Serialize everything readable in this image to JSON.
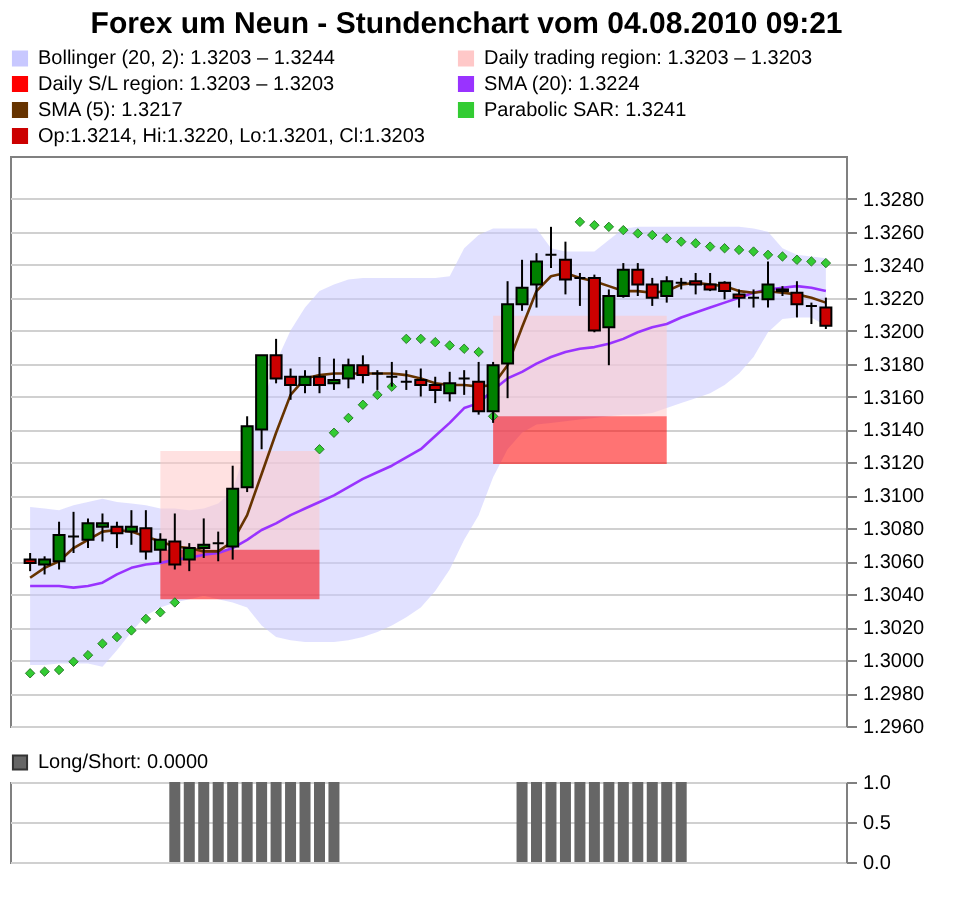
{
  "chart_data": [
    {
      "type": "candlestick",
      "title": "Forex um Neun - Stundenchart vom 04.08.2010 09:21",
      "categories": [
        null,
        null,
        null,
        null,
        null,
        null,
        null,
        null,
        null,
        null,
        null,
        null,
        null,
        null,
        null,
        null,
        null,
        null,
        null,
        null,
        null,
        null,
        null,
        null,
        null,
        null,
        null,
        null,
        null,
        null,
        null,
        null,
        null,
        null,
        null,
        null,
        null,
        null,
        null,
        null,
        null,
        null,
        null,
        null,
        null,
        null,
        null,
        null,
        null,
        null,
        null,
        null,
        null,
        null,
        null,
        null
      ],
      "ylim": [
        1.296,
        1.3306
      ],
      "yticks": [
        {
          "value": 1.296,
          "label": "1.2960"
        },
        {
          "value": 1.298,
          "label": "1.2980"
        },
        {
          "value": 1.3,
          "label": "1.3000"
        },
        {
          "value": 1.302,
          "label": "1.3020"
        },
        {
          "value": 1.304,
          "label": "1.3040"
        },
        {
          "value": 1.306,
          "label": "1.3060"
        },
        {
          "value": 1.308,
          "label": "1.3080"
        },
        {
          "value": 1.31,
          "label": "1.3100"
        },
        {
          "value": 1.312,
          "label": "1.3120"
        },
        {
          "value": 1.314,
          "label": "1.3140"
        },
        {
          "value": 1.316,
          "label": "1.3160"
        },
        {
          "value": 1.318,
          "label": "1.3180"
        },
        {
          "value": 1.32,
          "label": "1.3200"
        },
        {
          "value": 1.322,
          "label": "1.3220"
        },
        {
          "value": 1.324,
          "label": "1.3240"
        },
        {
          "value": 1.326,
          "label": "1.3260"
        },
        {
          "value": 1.328,
          "label": "1.3280"
        }
      ],
      "grid": "y",
      "legend": "top",
      "tick_labels": "y",
      "series": [
        {
          "type": "area",
          "name": "Bollinger (20, 2): 1.3203 – 1.3244",
          "color": "#c8c8ff",
          "values": [
            null,
            null,
            null,
            null,
            null,
            null,
            null,
            null,
            null,
            null,
            null,
            null,
            null,
            null,
            null,
            null,
            null,
            null,
            null,
            null,
            null,
            null,
            null,
            null,
            null,
            null,
            null,
            null,
            null,
            null,
            null,
            null,
            null,
            null,
            null,
            null,
            null,
            null,
            null,
            null,
            null,
            null,
            null,
            null,
            null,
            null,
            null,
            null,
            null,
            null,
            null,
            null,
            null,
            null,
            null,
            null
          ],
          "upper": [
            1.3093,
            1.3092,
            1.3091,
            1.3094,
            1.3096,
            1.3098,
            1.3096,
            1.3095,
            1.3094,
            1.3092,
            1.3092,
            1.3091,
            1.3092,
            1.3095,
            1.3103,
            1.3131,
            1.3154,
            1.3181,
            1.32,
            1.3214,
            1.3224,
            1.3228,
            1.3231,
            1.3232,
            1.3232,
            1.3232,
            1.3232,
            1.3232,
            1.3232,
            1.3233,
            1.325,
            1.3258,
            1.3262,
            1.3262,
            1.3262,
            1.3262,
            1.325,
            1.3248,
            1.3248,
            1.3248,
            1.3255,
            1.3262,
            1.3263,
            1.3263,
            1.3263,
            1.3263,
            1.3263,
            1.3263,
            1.3263,
            1.3263,
            1.3262,
            1.326,
            1.325,
            1.3246,
            1.3245,
            1.3244
          ],
          "lower": [
            1.2997,
            1.2997,
            1.2998,
            1.2998,
            1.2998,
            1.2996,
            1.3006,
            1.3017,
            1.3027,
            1.3032,
            1.3035,
            1.3037,
            1.3039,
            1.3037,
            1.3035,
            1.3032,
            1.3021,
            1.3014,
            1.3012,
            1.3011,
            1.3011,
            1.3011,
            1.3012,
            1.3014,
            1.3017,
            1.3021,
            1.3026,
            1.3032,
            1.3042,
            1.3055,
            1.3073,
            1.3088,
            1.3111,
            1.3128,
            1.3138,
            1.3143,
            1.3144,
            1.3145,
            1.3146,
            1.3147,
            1.3148,
            1.3149,
            1.3149,
            1.315,
            1.3153,
            1.3156,
            1.3159,
            1.3162,
            1.3167,
            1.3174,
            1.3184,
            1.3199,
            1.3207,
            1.3208,
            1.3208,
            1.3203
          ]
        },
        {
          "type": "area",
          "name": "Daily trading region: 1.3203 – 1.3203",
          "color": "#ffc8c8",
          "values": [
            null,
            null,
            null,
            null,
            null,
            null,
            null,
            null,
            null,
            null,
            null,
            null,
            null,
            null,
            null,
            null,
            null,
            null,
            null,
            null,
            null,
            null,
            null,
            null,
            null,
            null,
            null,
            null,
            null,
            null,
            null,
            null,
            null,
            null,
            null,
            null,
            null,
            null,
            null,
            null,
            null,
            null,
            null,
            null,
            null,
            null,
            null,
            null,
            null,
            null,
            null,
            null,
            null,
            null,
            null,
            null
          ],
          "upper": [
            null,
            null,
            null,
            null,
            null,
            null,
            null,
            null,
            null,
            1.3127,
            1.3127,
            1.3127,
            1.3127,
            1.3127,
            1.3127,
            1.3127,
            1.3127,
            1.3127,
            1.3127,
            1.3127,
            1.3127,
            null,
            null,
            null,
            null,
            null,
            null,
            null,
            null,
            null,
            null,
            null,
            1.3209,
            1.3209,
            1.3209,
            1.3209,
            1.3209,
            1.3209,
            1.3209,
            1.3209,
            1.3209,
            1.3209,
            1.3209,
            1.3209,
            1.3209,
            null,
            null,
            null,
            null,
            null,
            null,
            null,
            null,
            null,
            null,
            null
          ],
          "lower": [
            null,
            null,
            null,
            null,
            null,
            null,
            null,
            null,
            null,
            1.3067,
            1.3067,
            1.3067,
            1.3067,
            1.3067,
            1.3067,
            1.3067,
            1.3067,
            1.3067,
            1.3067,
            1.3067,
            1.3067,
            null,
            null,
            null,
            null,
            null,
            null,
            null,
            null,
            null,
            null,
            null,
            1.3148,
            1.3148,
            1.3148,
            1.3148,
            1.3148,
            1.3148,
            1.3148,
            1.3148,
            1.3148,
            1.3148,
            1.3148,
            1.3148,
            1.3148,
            null,
            null,
            null,
            null,
            null,
            null,
            null,
            null,
            null,
            null,
            null
          ]
        },
        {
          "type": "area",
          "name": "Daily S/L region: 1.3203 – 1.3203",
          "color": "#ff0000",
          "values": [
            null,
            null,
            null,
            null,
            null,
            null,
            null,
            null,
            null,
            null,
            null,
            null,
            null,
            null,
            null,
            null,
            null,
            null,
            null,
            null,
            null,
            null,
            null,
            null,
            null,
            null,
            null,
            null,
            null,
            null,
            null,
            null,
            null,
            null,
            null,
            null,
            null,
            null,
            null,
            null,
            null,
            null,
            null,
            null,
            null,
            null,
            null,
            null,
            null,
            null,
            null,
            null,
            null,
            null,
            null,
            null
          ],
          "upper": [
            null,
            null,
            null,
            null,
            null,
            null,
            null,
            null,
            null,
            1.3067,
            1.3067,
            1.3067,
            1.3067,
            1.3067,
            1.3067,
            1.3067,
            1.3067,
            1.3067,
            1.3067,
            1.3067,
            1.3067,
            null,
            null,
            null,
            null,
            null,
            null,
            null,
            null,
            null,
            null,
            null,
            1.3148,
            1.3148,
            1.3148,
            1.3148,
            1.3148,
            1.3148,
            1.3148,
            1.3148,
            1.3148,
            1.3148,
            1.3148,
            1.3148,
            1.3148,
            null,
            null,
            null,
            null,
            null,
            null,
            null,
            null,
            null,
            null,
            null
          ],
          "lower": [
            null,
            null,
            null,
            null,
            null,
            null,
            null,
            null,
            null,
            1.3037,
            1.3037,
            1.3037,
            1.3037,
            1.3037,
            1.3037,
            1.3037,
            1.3037,
            1.3037,
            1.3037,
            1.3037,
            1.3037,
            null,
            null,
            null,
            null,
            null,
            null,
            null,
            null,
            null,
            null,
            null,
            1.3119,
            1.3119,
            1.3119,
            1.3119,
            1.3119,
            1.3119,
            1.3119,
            1.3119,
            1.3119,
            1.3119,
            1.3119,
            1.3119,
            1.3119,
            null,
            null,
            null,
            null,
            null,
            null,
            null,
            null,
            null,
            null,
            null
          ]
        },
        {
          "type": "line",
          "name": "SMA (20): 1.3224",
          "color": "#9933ff",
          "values": [
            1.3045,
            1.3045,
            1.3045,
            1.3044,
            1.3045,
            1.3047,
            1.3052,
            1.3056,
            1.3058,
            1.3059,
            1.3061,
            1.3062,
            1.3064,
            1.3065,
            1.3068,
            1.3073,
            1.3079,
            1.3083,
            1.3088,
            1.3092,
            1.3096,
            1.31,
            1.3105,
            1.311,
            1.3114,
            1.3118,
            1.3123,
            1.3128,
            1.3136,
            1.3144,
            1.3153,
            1.3156,
            1.3164,
            1.3171,
            1.3175,
            1.318,
            1.3184,
            1.3187,
            1.3189,
            1.319,
            1.3192,
            1.3195,
            1.3199,
            1.3202,
            1.3204,
            1.3208,
            1.3211,
            1.3214,
            1.3217,
            1.322,
            1.3223,
            1.3225,
            1.3226,
            1.3227,
            1.3226,
            1.3224
          ]
        },
        {
          "type": "line",
          "name": "SMA (5): 1.3217",
          "color": "#663300",
          "values": [
            1.305,
            1.3056,
            1.306,
            1.3068,
            1.3073,
            1.3078,
            1.3079,
            1.3078,
            1.3075,
            1.3072,
            1.3069,
            1.3068,
            1.3066,
            1.3066,
            1.3072,
            1.3088,
            1.3113,
            1.3138,
            1.3161,
            1.3171,
            1.3173,
            1.3174,
            1.3174,
            1.3174,
            1.3174,
            1.3174,
            1.3173,
            1.3171,
            1.3168,
            1.3167,
            1.3167,
            1.3166,
            1.3167,
            1.3179,
            1.3202,
            1.3224,
            1.3233,
            1.3235,
            1.3232,
            1.323,
            1.3227,
            1.3224,
            1.3224,
            1.3223,
            1.3224,
            1.3228,
            1.3229,
            1.3228,
            1.3227,
            1.3224,
            1.3223,
            1.3224,
            1.3223,
            1.3222,
            1.322,
            1.3217
          ]
        },
        {
          "type": "scatter",
          "name": "Parabolic SAR: 1.3241",
          "color": "#33cc33",
          "marker": "diamond",
          "values": [
            1.2992,
            1.2993,
            1.2994,
            1.2999,
            1.3003,
            1.301,
            1.3014,
            1.3018,
            1.3025,
            1.3029,
            1.3035,
            null,
            null,
            null,
            null,
            null,
            null,
            null,
            null,
            null,
            1.3128,
            1.3138,
            1.3147,
            1.3155,
            1.3161,
            1.3166,
            1.3195,
            1.3195,
            1.3193,
            1.3191,
            1.3189,
            1.3187,
            1.3148,
            null,
            null,
            null,
            null,
            null,
            1.3266,
            1.3264,
            1.3263,
            1.3261,
            1.3259,
            1.3258,
            1.3256,
            1.3254,
            1.3253,
            1.3251,
            1.325,
            1.3249,
            1.3248,
            1.3246,
            1.3245,
            1.3243,
            1.3242,
            1.3241
          ]
        },
        {
          "name": "Op:1.3214, Hi:1.3220, Lo:1.3201, Cl:1.3203",
          "color": "#cc0000",
          "ohlc": [
            [
              1.3061,
              1.3065,
              1.3054,
              1.3059
            ],
            [
              1.3058,
              1.3063,
              1.3052,
              1.3061
            ],
            [
              1.306,
              1.3084,
              1.3055,
              1.3076
            ],
            [
              1.3075,
              1.309,
              1.3065,
              1.3075
            ],
            [
              1.3073,
              1.3086,
              1.3068,
              1.3083
            ],
            [
              1.3081,
              1.3089,
              1.3072,
              1.3083
            ],
            [
              1.3081,
              1.3084,
              1.3068,
              1.3077
            ],
            [
              1.3078,
              1.3091,
              1.307,
              1.3081
            ],
            [
              1.308,
              1.3091,
              1.3061,
              1.3066
            ],
            [
              1.3067,
              1.3077,
              1.3059,
              1.3073
            ],
            [
              1.3072,
              1.3089,
              1.3055,
              1.3058
            ],
            [
              1.3061,
              1.3071,
              1.3054,
              1.3068
            ],
            [
              1.3068,
              1.3086,
              1.3062,
              1.307
            ],
            [
              1.3071,
              1.3078,
              1.306,
              1.3071
            ],
            [
              1.3069,
              1.3118,
              1.3061,
              1.3104
            ],
            [
              1.3105,
              1.3148,
              1.3102,
              1.3142
            ],
            [
              1.314,
              1.3185,
              1.3128,
              1.3185
            ],
            [
              1.3185,
              1.3195,
              1.3168,
              1.3171
            ],
            [
              1.3172,
              1.3177,
              1.3158,
              1.3167
            ],
            [
              1.3167,
              1.3176,
              1.3162,
              1.3172
            ],
            [
              1.3172,
              1.3184,
              1.3162,
              1.3167
            ],
            [
              1.3168,
              1.3183,
              1.3164,
              1.317
            ],
            [
              1.3171,
              1.3183,
              1.3165,
              1.3179
            ],
            [
              1.3179,
              1.3185,
              1.3168,
              1.3173
            ],
            [
              1.3174,
              1.3176,
              1.3164,
              1.3174
            ],
            [
              1.3172,
              1.3181,
              1.3166,
              1.3172
            ],
            [
              1.3169,
              1.3176,
              1.3164,
              1.3169
            ],
            [
              1.317,
              1.3177,
              1.316,
              1.3167
            ],
            [
              1.3167,
              1.3172,
              1.3156,
              1.3164
            ],
            [
              1.3162,
              1.3175,
              1.3157,
              1.3168
            ],
            [
              1.3171,
              1.3176,
              1.3161,
              1.3171
            ],
            [
              1.3169,
              1.3181,
              1.3149,
              1.3151
            ],
            [
              1.3151,
              1.3181,
              1.3144,
              1.3179
            ],
            [
              1.318,
              1.323,
              1.3159,
              1.3216
            ],
            [
              1.3216,
              1.3243,
              1.3212,
              1.3226
            ],
            [
              1.3228,
              1.3247,
              1.3214,
              1.3242
            ],
            [
              1.3246,
              1.3263,
              1.3238,
              1.3246
            ],
            [
              1.3243,
              1.3254,
              1.3222,
              1.3231
            ],
            [
              1.3232,
              1.3235,
              1.3215,
              1.3232
            ],
            [
              1.3232,
              1.3234,
              1.3199,
              1.32
            ],
            [
              1.3202,
              1.3225,
              1.3179,
              1.3221
            ],
            [
              1.3221,
              1.3241,
              1.322,
              1.3237
            ],
            [
              1.3237,
              1.3241,
              1.3221,
              1.3228
            ],
            [
              1.3228,
              1.3232,
              1.3215,
              1.322
            ],
            [
              1.3221,
              1.3233,
              1.3217,
              1.323
            ],
            [
              1.3229,
              1.3232,
              1.3225,
              1.3229
            ],
            [
              1.323,
              1.3235,
              1.3222,
              1.3228
            ],
            [
              1.3228,
              1.3235,
              1.3224,
              1.3225
            ],
            [
              1.3229,
              1.323,
              1.3219,
              1.3224
            ],
            [
              1.3222,
              1.3225,
              1.3214,
              1.322
            ],
            [
              1.322,
              1.3225,
              1.3214,
              1.322
            ],
            [
              1.3219,
              1.3242,
              1.3214,
              1.3228
            ],
            [
              1.3225,
              1.3227,
              1.3221,
              1.3224
            ],
            [
              1.3223,
              1.323,
              1.3208,
              1.3216
            ],
            [
              1.3215,
              1.3217,
              1.3204,
              1.3215
            ],
            [
              1.3214,
              1.322,
              1.3201,
              1.3203
            ]
          ],
          "colors": [
            "#cc0000",
            "#008000",
            "#008000",
            "#000000",
            "#008000",
            "#008000",
            "#cc0000",
            "#008000",
            "#cc0000",
            "#008000",
            "#cc0000",
            "#008000",
            "#008000",
            "#000000",
            "#008000",
            "#008000",
            "#008000",
            "#cc0000",
            "#cc0000",
            "#008000",
            "#cc0000",
            "#008000",
            "#008000",
            "#cc0000",
            "#000000",
            "#000000",
            "#000000",
            "#cc0000",
            "#cc0000",
            "#008000",
            "#000000",
            "#cc0000",
            "#008000",
            "#008000",
            "#008000",
            "#008000",
            "#000000",
            "#cc0000",
            "#000000",
            "#cc0000",
            "#008000",
            "#008000",
            "#cc0000",
            "#cc0000",
            "#008000",
            "#000000",
            "#cc0000",
            "#cc0000",
            "#cc0000",
            "#cc0000",
            "#000000",
            "#008000",
            "#cc0000",
            "#cc0000",
            "#000000",
            "#cc0000"
          ]
        }
      ]
    },
    {
      "type": "bar",
      "categories": [
        null,
        null,
        null,
        null,
        null,
        null,
        null,
        null,
        null,
        null,
        null,
        null,
        null,
        null,
        null,
        null,
        null,
        null,
        null,
        null,
        null,
        null,
        null,
        null,
        null,
        null,
        null,
        null,
        null,
        null,
        null,
        null,
        null,
        null,
        null,
        null,
        null,
        null,
        null,
        null,
        null,
        null,
        null,
        null,
        null,
        null,
        null,
        null,
        null,
        null,
        null,
        null,
        null,
        null,
        null,
        null
      ],
      "ylim": [
        0,
        1
      ],
      "yticks": [
        {
          "value": 0,
          "label": "0.0"
        },
        {
          "value": 0.5,
          "label": "0.5"
        },
        {
          "value": 1,
          "label": "1.0"
        }
      ],
      "grid": "y",
      "legend": "top",
      "tick_labels": "y",
      "series": [
        {
          "name": "Long/Short: 0.0000",
          "color": "#666666",
          "values": [
            0,
            0,
            0,
            0,
            0,
            0,
            0,
            0,
            0,
            0,
            1,
            1,
            1,
            1,
            1,
            1,
            1,
            1,
            1,
            1,
            1,
            1,
            0,
            0,
            0,
            0,
            0,
            0,
            0,
            0,
            0,
            0,
            0,
            0,
            1,
            1,
            1,
            1,
            1,
            1,
            1,
            1,
            1,
            1,
            1,
            1,
            0,
            0,
            0,
            0,
            0,
            0,
            0,
            0,
            0,
            0
          ]
        }
      ]
    }
  ]
}
